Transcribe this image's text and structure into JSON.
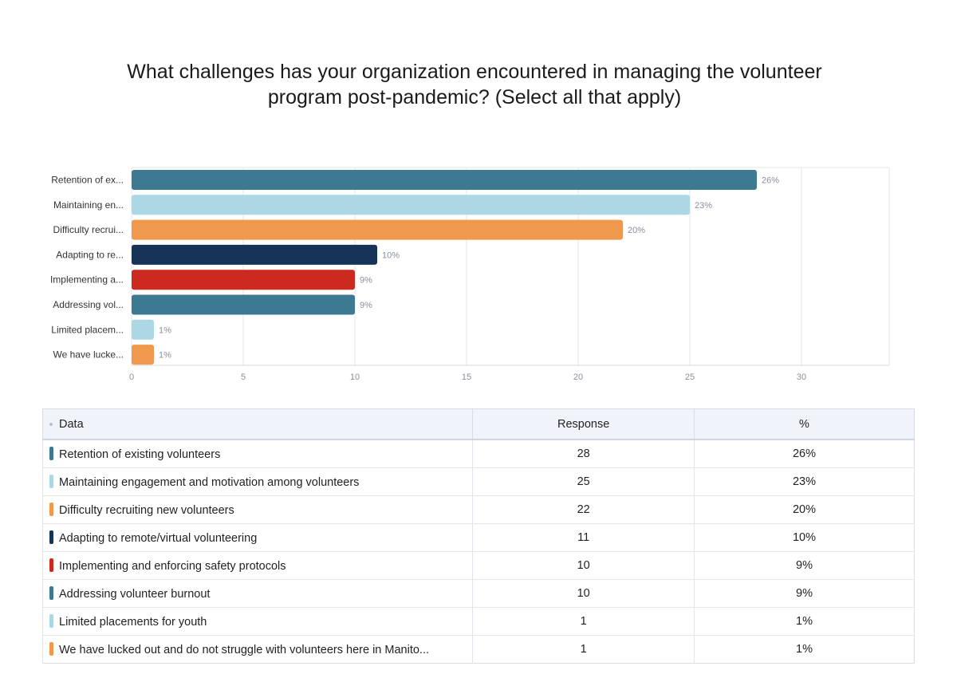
{
  "chart_data": {
    "type": "bar",
    "orientation": "horizontal",
    "title": "What challenges has your organization encountered in managing the volunteer\nprogram post-pandemic? (Select all that apply)",
    "categories": [
      "Retention of existing volunteers",
      "Maintaining engagement and motivation among volunteers",
      "Difficulty recruiting new volunteers",
      "Adapting to remote/virtual volunteering",
      "Implementing and enforcing safety protocols",
      "Addressing volunteer burnout",
      "Limited placements for youth",
      "We have lucked out and do not struggle with volunteers here in Manito..."
    ],
    "axis_labels": [
      "Retention of ex...",
      "Maintaining en...",
      "Difficulty recrui...",
      "Adapting to re...",
      "Implementing a...",
      "Addressing vol...",
      "Limited placem...",
      "We have lucke..."
    ],
    "values": [
      28,
      25,
      22,
      11,
      10,
      10,
      1,
      1
    ],
    "percent_labels": [
      "26%",
      "23%",
      "20%",
      "10%",
      "9%",
      "9%",
      "1%",
      "1%"
    ],
    "colors": [
      "#3d7a91",
      "#acd7e5",
      "#f0994c",
      "#183358",
      "#cc2a1e",
      "#3d7a91",
      "#acd7e5",
      "#f0994c"
    ],
    "xlim": [
      0,
      34
    ],
    "xticks": [
      0,
      5,
      10,
      15,
      20,
      25,
      30
    ],
    "grid": true
  },
  "table": {
    "headers": [
      "Data",
      "Response",
      "%"
    ]
  }
}
